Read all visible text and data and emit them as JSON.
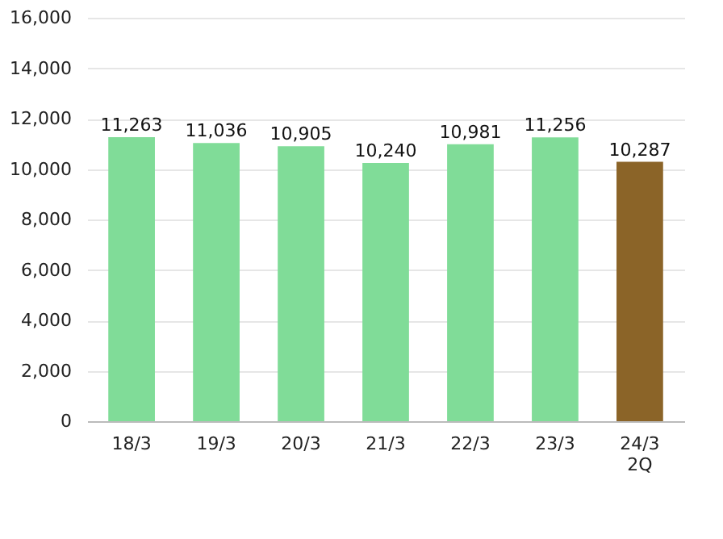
{
  "chart_data": {
    "type": "bar",
    "categories": [
      "18/3",
      "19/3",
      "20/3",
      "21/3",
      "22/3",
      "23/3",
      "24/3\n2Q"
    ],
    "values": [
      11263,
      11036,
      10905,
      10240,
      10981,
      11256,
      10287
    ],
    "colors": [
      "#80dc98",
      "#80dc98",
      "#80dc98",
      "#80dc98",
      "#80dc98",
      "#80dc98",
      "#8b6428"
    ],
    "value_labels": [
      "11,263",
      "11,036",
      "10,905",
      "10,240",
      "10,981",
      "11,256",
      "10,287"
    ],
    "ylim": [
      0,
      16000
    ],
    "yticks": [
      0,
      {
        "value": 2000,
        "label": "2,000"
      },
      {
        "value": 4000,
        "label": "4,000"
      },
      {
        "value": 6000,
        "label": "6,000"
      },
      {
        "value": 8000,
        "label": "8,000"
      },
      {
        "value": 10000,
        "label": "10,000"
      },
      {
        "value": 12000,
        "label": "12,000"
      },
      {
        "value": 14000,
        "label": "14,000"
      },
      {
        "value": 16000,
        "label": "16,000"
      }
    ],
    "grid": "y",
    "legend": false
  }
}
